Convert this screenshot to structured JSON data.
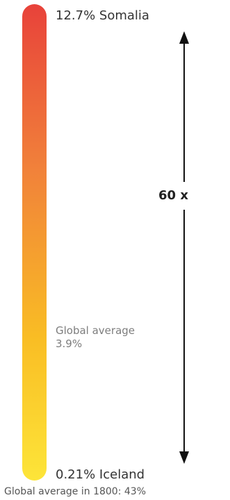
{
  "chart_data": {
    "type": "bar",
    "max": {
      "value": "12.7%",
      "country": "Somalia"
    },
    "min": {
      "value": "0.21%",
      "country": "Iceland"
    },
    "ratio_label": "60 x",
    "global_average": {
      "label": "Global average",
      "value": "3.9%"
    },
    "footer": "Global average in 1800: 43%",
    "colors": {
      "gradient_top": "#e8423a",
      "gradient_bottom": "#fde539",
      "arrow": "#111111"
    }
  }
}
